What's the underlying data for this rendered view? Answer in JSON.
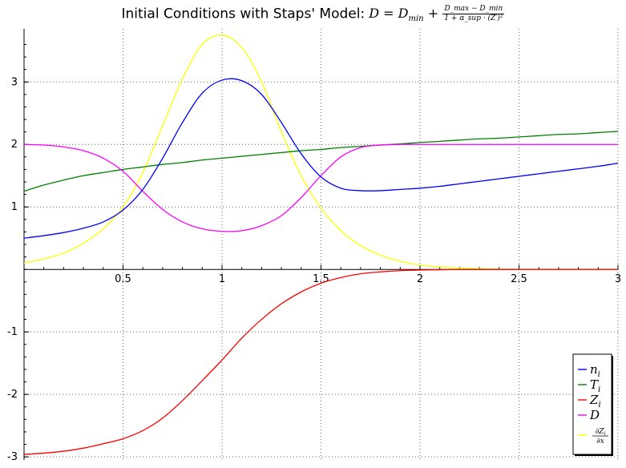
{
  "chart_data": {
    "type": "line",
    "title": {
      "prefix": "Initial Conditions with Staps' Model:",
      "formula_lhs": "D = D",
      "formula_lhs_sub": "min",
      "formula_plus": "+",
      "frac_num": "D_max − D_min",
      "frac_den": "1 + α_sup · (Z′)²"
    },
    "xlim": [
      0,
      3
    ],
    "ylim": [
      -3.05,
      3.85
    ],
    "x_ticks": [
      {
        "value": 0.5,
        "label": "0.5"
      },
      {
        "value": 1,
        "label": "1"
      },
      {
        "value": 1.5,
        "label": "1.5"
      },
      {
        "value": 2,
        "label": "2"
      },
      {
        "value": 2.5,
        "label": "2.5"
      },
      {
        "value": 3,
        "label": "3"
      }
    ],
    "y_ticks": [
      {
        "value": -3,
        "label": "-3"
      },
      {
        "value": -2,
        "label": "-2"
      },
      {
        "value": -1,
        "label": "-1"
      },
      {
        "value": 1,
        "label": "1"
      },
      {
        "value": 2,
        "label": "2"
      },
      {
        "value": 3,
        "label": "3"
      }
    ],
    "grid": true,
    "legend_position": "bottom-right",
    "x": [
      0,
      0.1,
      0.2,
      0.3,
      0.4,
      0.5,
      0.6,
      0.7,
      0.8,
      0.9,
      1.0,
      1.1,
      1.2,
      1.3,
      1.4,
      1.5,
      1.6,
      1.7,
      1.8,
      1.9,
      2.0,
      2.1,
      2.2,
      2.3,
      2.4,
      2.5,
      2.6,
      2.7,
      2.8,
      2.9,
      3.0
    ],
    "series": [
      {
        "name": "n_i",
        "legend_main": "n",
        "legend_sub": "i",
        "color": "#0000ff",
        "values": [
          0.5,
          0.54,
          0.59,
          0.66,
          0.76,
          0.95,
          1.28,
          1.78,
          2.35,
          2.82,
          3.03,
          3.02,
          2.8,
          2.35,
          1.85,
          1.48,
          1.3,
          1.26,
          1.26,
          1.28,
          1.3,
          1.33,
          1.37,
          1.41,
          1.45,
          1.49,
          1.53,
          1.57,
          1.61,
          1.65,
          1.7
        ]
      },
      {
        "name": "T_i",
        "legend_main": "T",
        "legend_sub": "i",
        "color": "#008000",
        "values": [
          1.25,
          1.35,
          1.43,
          1.5,
          1.55,
          1.6,
          1.64,
          1.68,
          1.71,
          1.75,
          1.78,
          1.81,
          1.84,
          1.87,
          1.9,
          1.92,
          1.95,
          1.97,
          1.99,
          2.01,
          2.03,
          2.05,
          2.07,
          2.09,
          2.1,
          2.12,
          2.14,
          2.16,
          2.17,
          2.19,
          2.21
        ]
      },
      {
        "name": "Z_i",
        "legend_main": "Z",
        "legend_sub": "i",
        "color": "#ff0000",
        "values": [
          -2.96,
          -2.94,
          -2.91,
          -2.86,
          -2.79,
          -2.71,
          -2.58,
          -2.38,
          -2.1,
          -1.78,
          -1.45,
          -1.1,
          -0.8,
          -0.55,
          -0.36,
          -0.22,
          -0.13,
          -0.07,
          -0.04,
          -0.02,
          -0.01,
          -0.005,
          0,
          0,
          0,
          0,
          0,
          0,
          0,
          0,
          0
        ]
      },
      {
        "name": "D",
        "legend_main": "D",
        "legend_sub": "",
        "color": "#ff00ff",
        "values": [
          2.0,
          1.99,
          1.96,
          1.9,
          1.78,
          1.57,
          1.25,
          0.96,
          0.76,
          0.65,
          0.61,
          0.62,
          0.7,
          0.86,
          1.15,
          1.5,
          1.8,
          1.95,
          1.99,
          2.0,
          2.0,
          2.0,
          2.0,
          2.0,
          2.0,
          2.0,
          2.0,
          2.0,
          2.0,
          2.0,
          2.0
        ]
      },
      {
        "name": "∂Z_i/∂x",
        "legend_main": "",
        "legend_sub": "",
        "legend_frac_num": "∂Z",
        "legend_frac_num_sub": "i",
        "legend_frac_den": "∂x",
        "color": "#ffff00",
        "values": [
          0.1,
          0.17,
          0.26,
          0.42,
          0.65,
          1.0,
          1.55,
          2.3,
          3.05,
          3.6,
          3.75,
          3.55,
          3.0,
          2.2,
          1.5,
          0.98,
          0.62,
          0.38,
          0.23,
          0.13,
          0.07,
          0.04,
          0.02,
          0.01,
          0.005,
          0,
          0,
          0,
          0,
          0,
          0
        ]
      }
    ]
  }
}
